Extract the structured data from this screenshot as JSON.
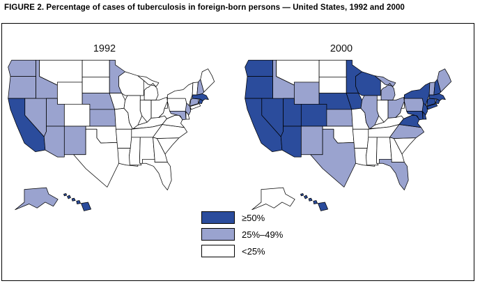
{
  "figure": {
    "title": "FIGURE 2. Percentage of cases of tuberculosis in foreign-born persons — United States, 1992 and 2000"
  },
  "legend": {
    "items": [
      {
        "id": "high",
        "label": "≥50%",
        "color": "#2b4c9c"
      },
      {
        "id": "mid",
        "label": "25%–49%",
        "color": "#9aa3cf"
      },
      {
        "id": "low",
        "label": "<25%",
        "color": "#ffffff"
      }
    ]
  },
  "colors": {
    "outline": "#000000",
    "background": "#ffffff"
  },
  "maps": [
    {
      "year": "1992",
      "high": [
        "CA",
        "HI",
        "MA",
        "RI"
      ],
      "mid": [
        "WA",
        "OR",
        "ID",
        "NV",
        "UT",
        "AZ",
        "NM",
        "AK",
        "MN",
        "NE",
        "KS",
        "NH",
        "CT",
        "NJ",
        "MD"
      ]
    },
    {
      "year": "2000",
      "high": [
        "WA",
        "OR",
        "CA",
        "NV",
        "UT",
        "AZ",
        "CO",
        "NE",
        "MN",
        "IA",
        "WI",
        "NY",
        "NH",
        "MA",
        "RI",
        "CT",
        "NJ",
        "DE",
        "MD",
        "VA",
        "HI"
      ],
      "mid": [
        "ID",
        "WY",
        "NM",
        "KS",
        "TX",
        "IL",
        "MI",
        "OH",
        "PA",
        "VT",
        "ME",
        "NC",
        "FL"
      ]
    }
  ]
}
